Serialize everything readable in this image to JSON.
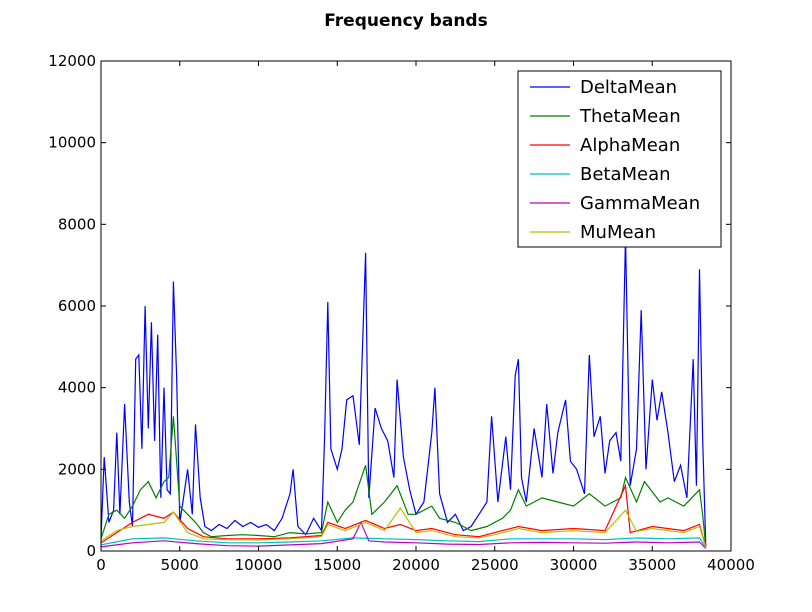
{
  "chart_data": {
    "type": "line",
    "title": "Frequency bands",
    "xlabel": "",
    "ylabel": "",
    "xlim": [
      0,
      40000
    ],
    "ylim": [
      0,
      12000
    ],
    "xticks": [
      0,
      5000,
      10000,
      15000,
      20000,
      25000,
      30000,
      35000,
      40000
    ],
    "xtick_labels": [
      "0",
      "5000",
      "10000",
      "15000",
      "20000",
      "25000",
      "30000",
      "35000",
      "40000"
    ],
    "yticks": [
      0,
      2000,
      4000,
      6000,
      8000,
      10000,
      12000
    ],
    "ytick_labels": [
      "0",
      "2000",
      "4000",
      "6000",
      "8000",
      "10000",
      "12000"
    ],
    "grid": false,
    "legend_position": "top-right",
    "series": [
      {
        "name": "DeltaMean",
        "color": "#0000ff",
        "points": [
          [
            0,
            300
          ],
          [
            200,
            2300
          ],
          [
            500,
            700
          ],
          [
            800,
            1000
          ],
          [
            1000,
            2900
          ],
          [
            1200,
            900
          ],
          [
            1500,
            3600
          ],
          [
            1800,
            1200
          ],
          [
            2000,
            600
          ],
          [
            2200,
            4700
          ],
          [
            2400,
            4800
          ],
          [
            2600,
            2500
          ],
          [
            2800,
            6000
          ],
          [
            3000,
            3000
          ],
          [
            3200,
            5600
          ],
          [
            3400,
            2700
          ],
          [
            3600,
            5300
          ],
          [
            3800,
            1300
          ],
          [
            4000,
            4000
          ],
          [
            4200,
            1500
          ],
          [
            4400,
            1400
          ],
          [
            4600,
            6600
          ],
          [
            4800,
            4300
          ],
          [
            5000,
            700
          ],
          [
            5200,
            1200
          ],
          [
            5500,
            2000
          ],
          [
            5800,
            900
          ],
          [
            6000,
            3100
          ],
          [
            6300,
            1300
          ],
          [
            6600,
            600
          ],
          [
            7000,
            500
          ],
          [
            7500,
            650
          ],
          [
            8000,
            550
          ],
          [
            8500,
            750
          ],
          [
            9000,
            600
          ],
          [
            9500,
            700
          ],
          [
            10000,
            580
          ],
          [
            10500,
            650
          ],
          [
            11000,
            500
          ],
          [
            11500,
            800
          ],
          [
            12000,
            1400
          ],
          [
            12200,
            2000
          ],
          [
            12500,
            600
          ],
          [
            13000,
            400
          ],
          [
            13500,
            800
          ],
          [
            14000,
            500
          ],
          [
            14200,
            2800
          ],
          [
            14400,
            6100
          ],
          [
            14600,
            2500
          ],
          [
            15000,
            2000
          ],
          [
            15300,
            2500
          ],
          [
            15600,
            3700
          ],
          [
            16000,
            3800
          ],
          [
            16400,
            2600
          ],
          [
            16800,
            7300
          ],
          [
            17000,
            1300
          ],
          [
            17400,
            3500
          ],
          [
            17800,
            3000
          ],
          [
            18200,
            2700
          ],
          [
            18600,
            1800
          ],
          [
            18800,
            4200
          ],
          [
            19200,
            2300
          ],
          [
            19600,
            1500
          ],
          [
            20000,
            900
          ],
          [
            20500,
            1200
          ],
          [
            21000,
            2900
          ],
          [
            21200,
            4000
          ],
          [
            21500,
            1400
          ],
          [
            22000,
            700
          ],
          [
            22500,
            900
          ],
          [
            23000,
            500
          ],
          [
            23500,
            600
          ],
          [
            24000,
            900
          ],
          [
            24500,
            1200
          ],
          [
            24800,
            3300
          ],
          [
            25200,
            1200
          ],
          [
            25700,
            2800
          ],
          [
            26000,
            1500
          ],
          [
            26300,
            4300
          ],
          [
            26500,
            4700
          ],
          [
            26700,
            1800
          ],
          [
            27000,
            1200
          ],
          [
            27500,
            3000
          ],
          [
            28000,
            1800
          ],
          [
            28300,
            3600
          ],
          [
            28700,
            1900
          ],
          [
            29000,
            2900
          ],
          [
            29500,
            3700
          ],
          [
            29800,
            2200
          ],
          [
            30200,
            2000
          ],
          [
            30700,
            1400
          ],
          [
            31000,
            4800
          ],
          [
            31300,
            2800
          ],
          [
            31700,
            3300
          ],
          [
            32000,
            1900
          ],
          [
            32300,
            2700
          ],
          [
            32700,
            2900
          ],
          [
            33000,
            2200
          ],
          [
            33300,
            7700
          ],
          [
            33600,
            1600
          ],
          [
            34000,
            2500
          ],
          [
            34300,
            5900
          ],
          [
            34600,
            2000
          ],
          [
            35000,
            4200
          ],
          [
            35300,
            3200
          ],
          [
            35600,
            3900
          ],
          [
            36000,
            2900
          ],
          [
            36400,
            1700
          ],
          [
            36800,
            2100
          ],
          [
            37200,
            1300
          ],
          [
            37600,
            4700
          ],
          [
            37800,
            1600
          ],
          [
            38000,
            6900
          ],
          [
            38200,
            2800
          ],
          [
            38400,
            100
          ]
        ]
      },
      {
        "name": "ThetaMean",
        "color": "#008000",
        "points": [
          [
            0,
            300
          ],
          [
            500,
            900
          ],
          [
            1000,
            1000
          ],
          [
            1500,
            800
          ],
          [
            2000,
            1100
          ],
          [
            2500,
            1500
          ],
          [
            3000,
            1700
          ],
          [
            3500,
            1300
          ],
          [
            4000,
            1700
          ],
          [
            4300,
            1800
          ],
          [
            4600,
            3300
          ],
          [
            5000,
            1100
          ],
          [
            5500,
            900
          ],
          [
            6000,
            700
          ],
          [
            6500,
            450
          ],
          [
            7000,
            350
          ],
          [
            8000,
            380
          ],
          [
            9000,
            400
          ],
          [
            10000,
            380
          ],
          [
            11000,
            350
          ],
          [
            12000,
            450
          ],
          [
            13000,
            420
          ],
          [
            14000,
            450
          ],
          [
            14400,
            1200
          ],
          [
            15000,
            700
          ],
          [
            15500,
            1000
          ],
          [
            16000,
            1200
          ],
          [
            16800,
            2100
          ],
          [
            17200,
            900
          ],
          [
            18000,
            1200
          ],
          [
            18800,
            1600
          ],
          [
            19500,
            900
          ],
          [
            20000,
            900
          ],
          [
            21000,
            1100
          ],
          [
            21500,
            800
          ],
          [
            22500,
            700
          ],
          [
            23500,
            500
          ],
          [
            24500,
            600
          ],
          [
            25500,
            800
          ],
          [
            26000,
            1000
          ],
          [
            26500,
            1500
          ],
          [
            27000,
            1100
          ],
          [
            28000,
            1300
          ],
          [
            29000,
            1200
          ],
          [
            30000,
            1100
          ],
          [
            31000,
            1400
          ],
          [
            32000,
            1100
          ],
          [
            33000,
            1300
          ],
          [
            33300,
            1800
          ],
          [
            34000,
            1200
          ],
          [
            34500,
            1700
          ],
          [
            35500,
            1200
          ],
          [
            36000,
            1300
          ],
          [
            37000,
            1100
          ],
          [
            38000,
            1500
          ],
          [
            38200,
            900
          ],
          [
            38400,
            100
          ]
        ]
      },
      {
        "name": "AlphaMean",
        "color": "#ff0000",
        "points": [
          [
            0,
            200
          ],
          [
            1000,
            450
          ],
          [
            2000,
            700
          ],
          [
            3000,
            900
          ],
          [
            4000,
            800
          ],
          [
            4600,
            950
          ],
          [
            5500,
            550
          ],
          [
            6500,
            350
          ],
          [
            8000,
            300
          ],
          [
            10000,
            300
          ],
          [
            12000,
            320
          ],
          [
            14000,
            380
          ],
          [
            14400,
            700
          ],
          [
            15500,
            550
          ],
          [
            16800,
            750
          ],
          [
            18000,
            550
          ],
          [
            19000,
            650
          ],
          [
            20000,
            500
          ],
          [
            21000,
            550
          ],
          [
            22500,
            400
          ],
          [
            24000,
            350
          ],
          [
            25000,
            450
          ],
          [
            26500,
            600
          ],
          [
            28000,
            500
          ],
          [
            30000,
            550
          ],
          [
            32000,
            500
          ],
          [
            33300,
            1600
          ],
          [
            33600,
            450
          ],
          [
            35000,
            600
          ],
          [
            37000,
            500
          ],
          [
            38000,
            650
          ],
          [
            38400,
            100
          ]
        ]
      },
      {
        "name": "BetaMean",
        "color": "#00bfbf",
        "points": [
          [
            0,
            150
          ],
          [
            2000,
            300
          ],
          [
            4000,
            320
          ],
          [
            6000,
            250
          ],
          [
            8000,
            200
          ],
          [
            10000,
            200
          ],
          [
            12000,
            220
          ],
          [
            14000,
            250
          ],
          [
            16000,
            320
          ],
          [
            18000,
            300
          ],
          [
            20000,
            280
          ],
          [
            22000,
            250
          ],
          [
            24000,
            230
          ],
          [
            26000,
            300
          ],
          [
            28000,
            300
          ],
          [
            30000,
            300
          ],
          [
            32000,
            280
          ],
          [
            34000,
            320
          ],
          [
            36000,
            300
          ],
          [
            38000,
            320
          ],
          [
            38400,
            80
          ]
        ]
      },
      {
        "name": "GammaMean",
        "color": "#bf00bf",
        "points": [
          [
            0,
            100
          ],
          [
            2000,
            200
          ],
          [
            4000,
            250
          ],
          [
            6000,
            180
          ],
          [
            8000,
            130
          ],
          [
            10000,
            120
          ],
          [
            12000,
            150
          ],
          [
            14000,
            180
          ],
          [
            16000,
            300
          ],
          [
            16500,
            700
          ],
          [
            17000,
            250
          ],
          [
            18000,
            220
          ],
          [
            20000,
            200
          ],
          [
            22000,
            170
          ],
          [
            24000,
            160
          ],
          [
            26000,
            200
          ],
          [
            28000,
            210
          ],
          [
            30000,
            200
          ],
          [
            32000,
            190
          ],
          [
            34000,
            220
          ],
          [
            36000,
            200
          ],
          [
            38000,
            220
          ],
          [
            38400,
            60
          ]
        ]
      },
      {
        "name": "MuMean",
        "color": "#bfbf00",
        "points": [
          [
            0,
            250
          ],
          [
            1000,
            500
          ],
          [
            2000,
            600
          ],
          [
            3000,
            650
          ],
          [
            4000,
            700
          ],
          [
            4600,
            950
          ],
          [
            5500,
            450
          ],
          [
            6500,
            300
          ],
          [
            8000,
            280
          ],
          [
            10000,
            270
          ],
          [
            12000,
            300
          ],
          [
            14000,
            350
          ],
          [
            14400,
            650
          ],
          [
            15500,
            500
          ],
          [
            16800,
            700
          ],
          [
            18000,
            500
          ],
          [
            19000,
            1050
          ],
          [
            20000,
            450
          ],
          [
            21000,
            500
          ],
          [
            22500,
            350
          ],
          [
            24000,
            320
          ],
          [
            25000,
            400
          ],
          [
            26500,
            550
          ],
          [
            28000,
            450
          ],
          [
            30000,
            500
          ],
          [
            32000,
            450
          ],
          [
            33300,
            1000
          ],
          [
            34000,
            480
          ],
          [
            35000,
            550
          ],
          [
            37000,
            450
          ],
          [
            38000,
            600
          ],
          [
            38400,
            80
          ]
        ]
      }
    ]
  }
}
